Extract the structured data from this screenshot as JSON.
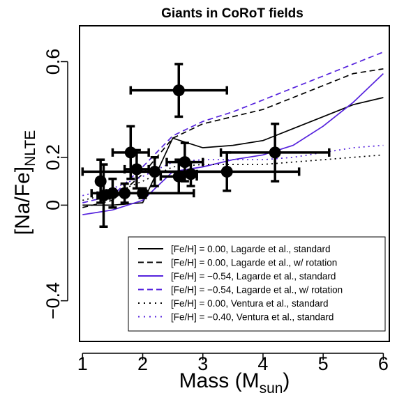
{
  "chart_data": {
    "type": "scatter",
    "title": "Giants in CoRoT fields",
    "xlabel": {
      "main": "Mass (M",
      "sub": "sun",
      "tail": ")"
    },
    "ylabel": {
      "main": "[Na/Fe]",
      "sub": "NLTE"
    },
    "xlim": [
      0.95,
      6.1
    ],
    "ylim": [
      -0.57,
      0.75
    ],
    "xticks": [
      1,
      2,
      3,
      4,
      5,
      6
    ],
    "xtick_labels": [
      "1",
      "2",
      "3",
      "4",
      "5",
      "6"
    ],
    "yticks": [
      -0.4,
      0.0,
      0.2,
      0.6
    ],
    "ytick_labels": [
      "−0.4",
      "0",
      "0.2",
      "0.6"
    ],
    "grid": false,
    "legend_position": "bottom-right",
    "points": [
      {
        "x": 2.6,
        "y": 0.48,
        "xerr": 0.8,
        "yerr": 0.11
      },
      {
        "x": 4.2,
        "y": 0.22,
        "xerr": 0.9,
        "yerr": 0.12
      },
      {
        "x": 1.8,
        "y": 0.22,
        "xerr": 0.3,
        "yerr": 0.11
      },
      {
        "x": 1.9,
        "y": 0.15,
        "xerr": 0.2,
        "yerr": 0.08
      },
      {
        "x": 2.7,
        "y": 0.18,
        "xerr": 0.3,
        "yerr": 0.08
      },
      {
        "x": 2.6,
        "y": 0.12,
        "xerr": 0.3,
        "yerr": 0.07
      },
      {
        "x": 2.8,
        "y": 0.13,
        "xerr": 0.1,
        "yerr": 0.05
      },
      {
        "x": 3.4,
        "y": 0.14,
        "xerr": 1.2,
        "yerr": 0.08
      },
      {
        "x": 2.2,
        "y": 0.14,
        "xerr": 1.2,
        "yerr": 0.06
      },
      {
        "x": 1.3,
        "y": 0.1,
        "xerr": 0.05,
        "yerr": 0.09
      },
      {
        "x": 1.35,
        "y": 0.04,
        "xerr": 0.1,
        "yerr": 0.13
      },
      {
        "x": 1.5,
        "y": 0.05,
        "xerr": 0.15,
        "yerr": 0.06
      },
      {
        "x": 1.7,
        "y": 0.05,
        "xerr": 0.3,
        "yerr": 0.04
      },
      {
        "x": 2.0,
        "y": 0.05,
        "xerr": 0.85,
        "yerr": 0.02
      }
    ],
    "series": [
      {
        "name": "[Fe/H] = 0.00, Lagarde et al., standard",
        "color": "#000000",
        "style": "solid",
        "x": [
          1.0,
          1.5,
          2.0,
          2.5,
          3.0,
          3.5,
          4.0,
          4.5,
          5.0,
          5.5,
          6.0
        ],
        "y": [
          0.0,
          0.0,
          0.01,
          0.28,
          0.24,
          0.25,
          0.27,
          0.32,
          0.37,
          0.42,
          0.45
        ]
      },
      {
        "name": "[Fe/H] = 0.00, Lagarde et al., w/ rotation",
        "color": "#000000",
        "style": "dashed",
        "x": [
          1.0,
          1.5,
          2.0,
          2.5,
          3.0,
          3.5,
          4.0,
          4.5,
          5.0,
          5.5,
          6.0
        ],
        "y": [
          -0.01,
          0.02,
          0.13,
          0.28,
          0.34,
          0.37,
          0.4,
          0.45,
          0.5,
          0.55,
          0.57
        ]
      },
      {
        "name": "[Fe/H] = −0.54, Lagarde et al., standard",
        "color": "#5522dd",
        "style": "solid",
        "x": [
          1.0,
          1.5,
          2.0,
          2.5,
          3.0,
          3.5,
          4.0,
          4.5,
          5.0,
          5.5,
          6.0
        ],
        "y": [
          -0.04,
          -0.02,
          0.02,
          0.14,
          0.16,
          0.19,
          0.21,
          0.25,
          0.33,
          0.43,
          0.55
        ]
      },
      {
        "name": "[Fe/H] = −0.54, Lagarde et al., w/ rotation",
        "color": "#5522dd",
        "style": "dashed",
        "x": [
          1.0,
          1.5,
          2.0,
          2.5,
          3.0,
          3.5,
          4.0,
          4.5,
          5.0,
          5.5,
          6.0
        ],
        "y": [
          0.01,
          0.04,
          0.16,
          0.29,
          0.35,
          0.39,
          0.44,
          0.49,
          0.54,
          0.59,
          0.64
        ]
      },
      {
        "name": "[Fe/H] = 0.00, Ventura et al., standard",
        "color": "#000000",
        "style": "dotted",
        "x": [
          1.0,
          1.5,
          2.0,
          2.5,
          3.0,
          3.5,
          4.0,
          4.5,
          5.0,
          5.5,
          6.0
        ],
        "y": [
          0.02,
          0.05,
          0.1,
          0.16,
          0.17,
          0.17,
          0.17,
          0.18,
          0.19,
          0.2,
          0.21
        ]
      },
      {
        "name": "[Fe/H] = −0.40, Ventura et al., standard",
        "color": "#5522dd",
        "style": "dotted",
        "x": [
          1.0,
          1.5,
          2.0,
          2.5,
          3.0,
          3.5,
          4.0,
          4.5,
          5.0,
          5.5,
          6.0
        ],
        "y": [
          0.04,
          0.07,
          0.12,
          0.18,
          0.19,
          0.19,
          0.19,
          0.2,
          0.22,
          0.24,
          0.25
        ]
      }
    ]
  }
}
